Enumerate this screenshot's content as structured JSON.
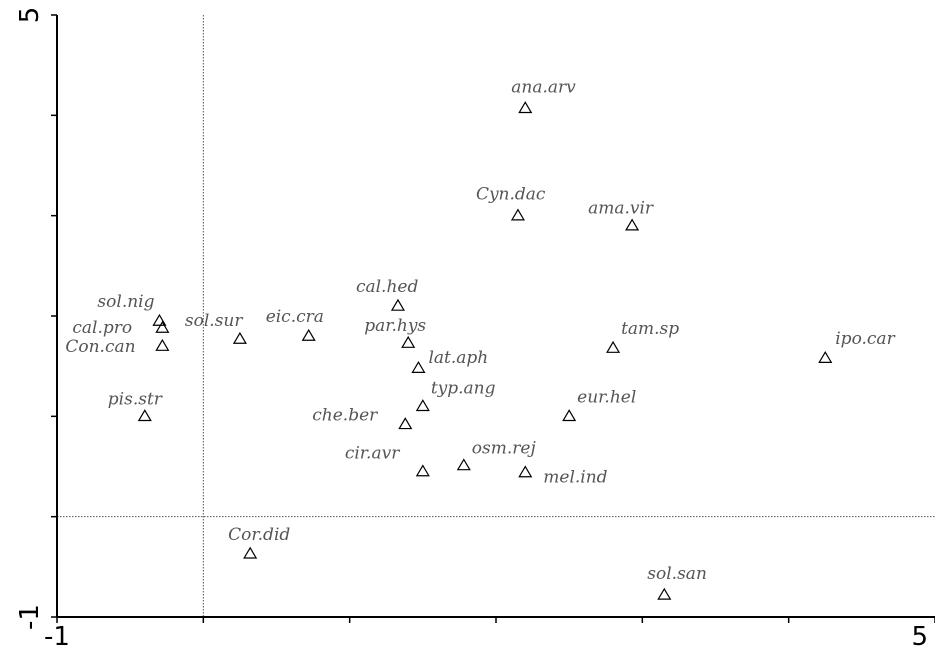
{
  "chart_data": {
    "type": "scatter",
    "title": "",
    "xlabel": "",
    "ylabel": "",
    "xlim": [
      -1,
      5
    ],
    "ylim": [
      -1,
      5
    ],
    "x_tick_labels": [
      "-1",
      "5"
    ],
    "y_tick_labels": [
      "-1",
      "5"
    ],
    "reference_lines": {
      "x": 0,
      "y": 0
    },
    "marker": "open-triangle",
    "grid": false,
    "points": [
      {
        "label": "ana.arv",
        "x": 2.2,
        "y": 4.07
      },
      {
        "label": "Cyn.dac",
        "x": 2.15,
        "y": 3.0
      },
      {
        "label": "ama.vir",
        "x": 2.93,
        "y": 2.9
      },
      {
        "label": "cal.hed",
        "x": 1.33,
        "y": 2.1
      },
      {
        "label": "sol.nig",
        "x": -0.3,
        "y": 1.95
      },
      {
        "label": "cal.pro",
        "x": -0.28,
        "y": 1.88
      },
      {
        "label": "Con.can",
        "x": -0.28,
        "y": 1.7
      },
      {
        "label": "sol.sur",
        "x": 0.25,
        "y": 1.77
      },
      {
        "label": "eic.cra",
        "x": 0.72,
        "y": 1.8
      },
      {
        "label": "par.hys",
        "x": 1.4,
        "y": 1.73
      },
      {
        "label": "tam.sp",
        "x": 2.8,
        "y": 1.68
      },
      {
        "label": "ipo.car",
        "x": 4.25,
        "y": 1.58
      },
      {
        "label": "lat.aph",
        "x": 1.47,
        "y": 1.48
      },
      {
        "label": "pis.str",
        "x": -0.4,
        "y": 1.0
      },
      {
        "label": "typ.ang",
        "x": 1.5,
        "y": 1.1
      },
      {
        "label": "che.ber",
        "x": 1.38,
        "y": 0.92
      },
      {
        "label": "eur.hel",
        "x": 2.5,
        "y": 1.0
      },
      {
        "label": "cir.avr",
        "x": 1.5,
        "y": 0.45
      },
      {
        "label": "osm.rej",
        "x": 1.78,
        "y": 0.51
      },
      {
        "label": "mel.ind",
        "x": 2.2,
        "y": 0.44
      },
      {
        "label": "Cor.did",
        "x": 0.32,
        "y": -0.37
      },
      {
        "label": "sol.san",
        "x": 3.15,
        "y": -0.78
      }
    ]
  }
}
